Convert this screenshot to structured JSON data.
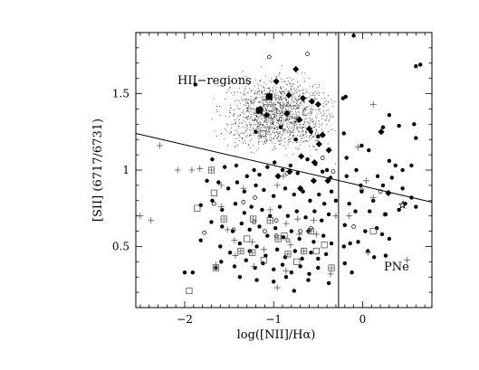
{
  "chart_data": {
    "type": "scatter",
    "title": "",
    "xlabel": "log([NII]/Hα)",
    "ylabel": "[SII] (6717/6731)",
    "xlim": [
      -2.55,
      0.78
    ],
    "ylim": [
      0.1,
      1.9
    ],
    "xticks": [
      -2,
      -1,
      0
    ],
    "yticks": [
      0.5,
      1,
      1.5
    ],
    "xtick_labels": [
      "−2",
      "−1",
      "0"
    ],
    "ytick_labels": [
      "0.5",
      "1",
      "1.5"
    ],
    "grid": false,
    "legend": "none",
    "annotations": [
      {
        "text": "HII−regions",
        "x": -1.98,
        "y": 1.56
      },
      {
        "text": "PNe",
        "x": 0.25,
        "y": 0.4
      }
    ],
    "lines": [
      {
        "name": "",
        "x": [
          -2.55,
          0.78
        ],
        "y": [
          1.24,
          0.79
        ]
      },
      {
        "name": "",
        "x": [
          -0.27,
          -0.27
        ],
        "y": [
          0.1,
          1.9
        ]
      }
    ],
    "hii_cloud": {
      "center": [
        -0.95,
        1.37
      ],
      "spread": [
        0.28,
        0.11
      ],
      "count": 1600
    },
    "series": [
      {
        "name": "",
        "marker": "filled-circle",
        "points": [
          [
            -1.88,
            1.56
          ],
          [
            -0.1,
            1.88
          ],
          [
            -0.19,
            1.48
          ],
          [
            -0.22,
            1.47
          ],
          [
            0.65,
            1.69
          ],
          [
            0.6,
            1.68
          ],
          [
            0.58,
            1.3
          ],
          [
            0.6,
            1.21
          ],
          [
            0.41,
            1.29
          ],
          [
            0.3,
            1.36
          ],
          [
            0.23,
            1.28
          ],
          [
            0.07,
            1.13
          ],
          [
            -0.01,
            1.16
          ],
          [
            0.3,
            1.06
          ],
          [
            0.37,
            1.03
          ],
          [
            0.45,
            1.0
          ],
          [
            0.55,
            1.03
          ],
          [
            0.33,
            0.95
          ],
          [
            0.17,
            0.96
          ],
          [
            0.23,
            0.9
          ],
          [
            0.45,
            0.88
          ],
          [
            0.55,
            0.82
          ],
          [
            0.48,
            0.78
          ],
          [
            0.6,
            0.76
          ],
          [
            0.12,
            0.8
          ],
          [
            0.08,
            0.73
          ],
          [
            0.26,
            0.71
          ],
          [
            0.41,
            0.74
          ],
          [
            0.16,
            0.62
          ],
          [
            0.22,
            0.58
          ],
          [
            0.03,
            0.6
          ],
          [
            0.3,
            0.55
          ],
          [
            0.06,
            0.47
          ],
          [
            0.13,
            0.43
          ],
          [
            0.26,
            0.44
          ],
          [
            -0.02,
            0.9
          ],
          [
            -0.01,
            0.86
          ],
          [
            -0.21,
            1.24
          ],
          [
            -0.18,
            1.08
          ],
          [
            -0.07,
            1.0
          ],
          [
            -0.18,
            0.96
          ],
          [
            -0.15,
            0.78
          ],
          [
            -0.2,
            0.64
          ],
          [
            -0.08,
            0.73
          ],
          [
            -0.14,
            0.52
          ],
          [
            -0.21,
            0.5
          ],
          [
            -0.05,
            0.53
          ],
          [
            -0.2,
            0.39
          ],
          [
            -0.12,
            0.33
          ],
          [
            -1.69,
            1.07
          ],
          [
            -1.55,
            1.02
          ],
          [
            -1.42,
            1.03
          ],
          [
            -1.3,
            0.96
          ],
          [
            -1.22,
            1.0
          ],
          [
            -1.16,
            0.97
          ],
          [
            -1.07,
            1.02
          ],
          [
            -0.99,
            1.05
          ],
          [
            -0.9,
            1.0
          ],
          [
            -0.81,
            1.03
          ],
          [
            -0.73,
            0.98
          ],
          [
            -0.62,
            1.07
          ],
          [
            -0.53,
            1.04
          ],
          [
            -0.45,
            0.99
          ],
          [
            -0.4,
            1.0
          ],
          [
            -0.36,
            0.95
          ],
          [
            -1.75,
            0.93
          ],
          [
            -1.62,
            0.92
          ],
          [
            -1.51,
            0.88
          ],
          [
            -1.41,
            0.92
          ],
          [
            -1.33,
            0.86
          ],
          [
            -1.2,
            0.9
          ],
          [
            -1.11,
            0.87
          ],
          [
            -1.0,
            0.83
          ],
          [
            -0.87,
            0.88
          ],
          [
            -0.77,
            0.84
          ],
          [
            -0.67,
            0.86
          ],
          [
            -0.59,
            0.8
          ],
          [
            -0.49,
            0.84
          ],
          [
            -0.43,
            0.78
          ],
          [
            -0.35,
            0.86
          ],
          [
            -0.3,
            0.8
          ],
          [
            -1.82,
            0.77
          ],
          [
            -1.69,
            0.8
          ],
          [
            -1.58,
            0.74
          ],
          [
            -1.43,
            0.78
          ],
          [
            -1.33,
            0.72
          ],
          [
            -1.25,
            0.76
          ],
          [
            -1.13,
            0.74
          ],
          [
            -1.04,
            0.7
          ],
          [
            -0.93,
            0.76
          ],
          [
            -0.84,
            0.7
          ],
          [
            -0.74,
            0.73
          ],
          [
            -0.64,
            0.69
          ],
          [
            -0.54,
            0.73
          ],
          [
            -0.46,
            0.67
          ],
          [
            -0.38,
            0.71
          ],
          [
            -1.7,
            0.66
          ],
          [
            -1.58,
            0.63
          ],
          [
            -1.46,
            0.6
          ],
          [
            -1.36,
            0.65
          ],
          [
            -1.27,
            0.61
          ],
          [
            -1.16,
            0.63
          ],
          [
            -1.07,
            0.57
          ],
          [
            -0.98,
            0.62
          ],
          [
            -0.89,
            0.56
          ],
          [
            -0.8,
            0.6
          ],
          [
            -0.71,
            0.55
          ],
          [
            -0.61,
            0.6
          ],
          [
            -0.55,
            0.53
          ],
          [
            -0.44,
            0.57
          ],
          [
            -0.35,
            0.52
          ],
          [
            -1.82,
            0.54
          ],
          [
            -1.6,
            0.5
          ],
          [
            -1.49,
            0.46
          ],
          [
            -1.38,
            0.52
          ],
          [
            -1.27,
            0.47
          ],
          [
            -1.19,
            0.5
          ],
          [
            -1.09,
            0.44
          ],
          [
            -0.96,
            0.48
          ],
          [
            -0.87,
            0.43
          ],
          [
            -0.76,
            0.47
          ],
          [
            -0.68,
            0.42
          ],
          [
            -0.58,
            0.46
          ],
          [
            -0.5,
            0.42
          ],
          [
            -0.41,
            0.45
          ],
          [
            -1.59,
            0.4
          ],
          [
            -1.44,
            0.37
          ],
          [
            -1.31,
            0.41
          ],
          [
            -1.21,
            0.36
          ],
          [
            -1.12,
            0.39
          ],
          [
            -1.0,
            0.35
          ],
          [
            -0.9,
            0.38
          ],
          [
            -0.8,
            0.33
          ],
          [
            -0.7,
            0.37
          ],
          [
            -0.6,
            0.32
          ],
          [
            -0.5,
            0.36
          ],
          [
            -1.38,
            0.3
          ],
          [
            -1.19,
            0.28
          ],
          [
            -1.0,
            0.27
          ],
          [
            -0.86,
            0.3
          ],
          [
            -0.77,
            0.21
          ],
          [
            -0.61,
            0.28
          ],
          [
            -0.38,
            0.26
          ],
          [
            -1.91,
            0.33
          ],
          [
            -2.0,
            0.33
          ],
          [
            -1.65,
            0.36
          ],
          [
            -0.92,
            1.28
          ],
          [
            -0.58,
            1.25
          ],
          [
            -0.5,
            1.22
          ],
          [
            -0.75,
            1.2
          ],
          [
            -1.2,
            1.25
          ]
        ]
      },
      {
        "name": "",
        "marker": "filled-diamond",
        "points": [
          [
            -0.97,
            1.58
          ],
          [
            -0.83,
            1.49
          ],
          [
            -0.67,
            1.47
          ],
          [
            -0.57,
            1.45
          ],
          [
            -0.5,
            1.43
          ],
          [
            -0.75,
            1.66
          ],
          [
            -1.15,
            1.4
          ],
          [
            -1.08,
            1.36
          ],
          [
            -0.71,
            1.33
          ],
          [
            -0.6,
            1.27
          ],
          [
            -0.49,
            1.17
          ],
          [
            -0.45,
            1.23
          ],
          [
            -0.38,
            1.13
          ],
          [
            -0.54,
            1.05
          ],
          [
            -0.69,
            1.09
          ],
          [
            -0.82,
            0.99
          ],
          [
            -0.7,
            0.88
          ],
          [
            -0.95,
            0.96
          ],
          [
            -0.55,
            0.93
          ],
          [
            -0.39,
            0.93
          ],
          [
            0.21,
            1.25
          ],
          [
            0.29,
            0.85
          ],
          [
            -0.85,
            1.37
          ]
        ]
      },
      {
        "name": "",
        "marker": "filled-square",
        "points": [
          [
            -1.05,
            1.48
          ],
          [
            -1.16,
            1.39
          ]
        ]
      },
      {
        "name": "",
        "marker": "open-circle",
        "points": [
          [
            -0.62,
            1.76
          ],
          [
            -1.05,
            1.74
          ],
          [
            -0.45,
            1.08
          ],
          [
            -0.33,
            0.99
          ],
          [
            -0.85,
            0.98
          ],
          [
            -1.34,
            0.79
          ],
          [
            -1.21,
            0.82
          ],
          [
            -1.22,
            0.66
          ],
          [
            -1.78,
            0.59
          ],
          [
            -1.1,
            0.6
          ],
          [
            -0.97,
            0.67
          ],
          [
            -0.84,
            0.54
          ],
          [
            -0.58,
            0.62
          ],
          [
            0.2,
            0.86
          ],
          [
            0.25,
            0.71
          ],
          [
            -0.1,
            0.63
          ],
          [
            -0.01,
            0.87
          ],
          [
            -0.97,
            0.57
          ],
          [
            -0.7,
            0.6
          ],
          [
            -1.67,
            0.78
          ],
          [
            -1.45,
            0.61
          ]
        ]
      },
      {
        "name": "",
        "marker": "open-square",
        "points": [
          [
            -1.12,
            1.24
          ],
          [
            -1.67,
            0.85
          ],
          [
            -1.86,
            0.75
          ],
          [
            -1.95,
            0.21
          ],
          [
            0.12,
            0.6
          ],
          [
            -0.88,
            0.57
          ],
          [
            -1.3,
            0.55
          ],
          [
            -1.11,
            0.41
          ],
          [
            -0.74,
            0.4
          ],
          [
            -0.52,
            0.47
          ],
          [
            -0.43,
            0.51
          ]
        ]
      },
      {
        "name": "",
        "marker": "boxed-plus",
        "points": [
          [
            -1.7,
            1.0
          ],
          [
            -1.56,
            0.68
          ],
          [
            -1.23,
            0.68
          ],
          [
            -1.04,
            0.67
          ],
          [
            -0.95,
            0.55
          ],
          [
            -0.84,
            0.45
          ],
          [
            -0.58,
            0.6
          ],
          [
            -1.24,
            0.46
          ],
          [
            -1.65,
            0.36
          ],
          [
            -1.37,
            0.47
          ],
          [
            -0.66,
            0.47
          ],
          [
            -0.35,
            0.36
          ]
        ]
      },
      {
        "name": "",
        "marker": "plus",
        "points": [
          [
            -2.5,
            0.7
          ],
          [
            -2.38,
            0.67
          ],
          [
            -2.28,
            1.16
          ],
          [
            -2.08,
            1.0
          ],
          [
            -1.92,
            1.0
          ],
          [
            -1.83,
            1.01
          ],
          [
            -1.59,
            0.9
          ],
          [
            -1.34,
            0.88
          ],
          [
            -1.59,
            0.76
          ],
          [
            -1.52,
            0.61
          ],
          [
            -1.44,
            0.54
          ],
          [
            -1.43,
            0.44
          ],
          [
            -1.24,
            0.53
          ],
          [
            -1.11,
            0.48
          ],
          [
            -1.04,
            0.74
          ],
          [
            -0.96,
            0.9
          ],
          [
            -0.89,
            0.96
          ],
          [
            -0.86,
            0.65
          ],
          [
            -0.73,
            0.68
          ],
          [
            -0.71,
            0.58
          ],
          [
            -0.86,
            0.34
          ],
          [
            -0.96,
            0.23
          ],
          [
            -0.81,
            0.51
          ],
          [
            -0.55,
            0.67
          ],
          [
            -0.52,
            0.58
          ],
          [
            -0.36,
            0.32
          ],
          [
            -1.65,
            0.38
          ],
          [
            -1.22,
            0.37
          ],
          [
            -0.3,
            0.7
          ],
          [
            -0.15,
            0.7
          ],
          [
            0.04,
            0.93
          ],
          [
            0.12,
            1.43
          ],
          [
            0.12,
            0.82
          ],
          [
            0.06,
            0.46
          ],
          [
            0.46,
            0.78
          ],
          [
            0.5,
            0.41
          ],
          [
            -0.05,
            1.15
          ]
        ]
      },
      {
        "name": "",
        "marker": "open-star",
        "points": [
          [
            0.45,
            0.77
          ]
        ]
      }
    ]
  }
}
